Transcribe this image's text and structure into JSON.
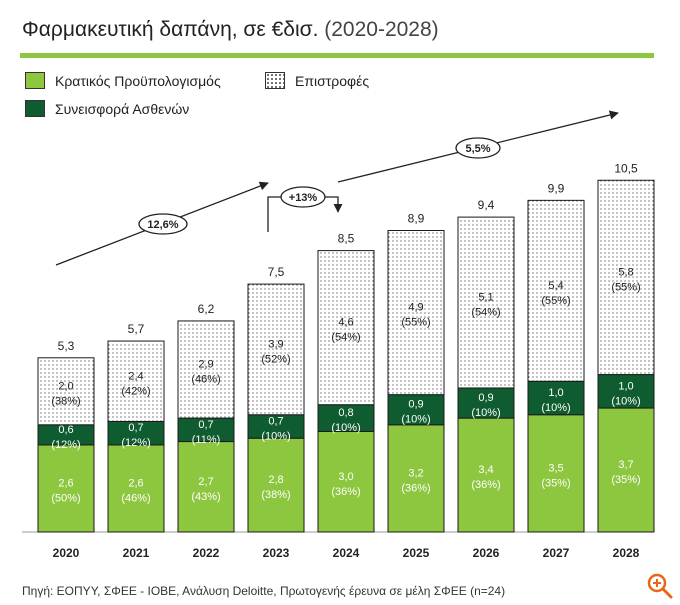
{
  "title": {
    "main": "Φαρμακευτική δαπάνη, σε €δισ.",
    "sub": "(2020-2028)"
  },
  "legend": [
    {
      "label": "Κρατικός Προϋπολογισμός",
      "swatch": "green"
    },
    {
      "label": "Επιστροφές",
      "swatch": "dots"
    },
    {
      "label": "Συνεισφορά Ασθενών",
      "swatch": "dark"
    }
  ],
  "colors": {
    "budget": "#8dc63f",
    "patients": "#0e5c2f",
    "rebates_fill": "#ffffff",
    "dots": "#444444",
    "accent_rule": "#8dc63f"
  },
  "chart_data": {
    "type": "bar",
    "stacked": true,
    "categories": [
      "2020",
      "2021",
      "2022",
      "2023",
      "2024",
      "2025",
      "2026",
      "2027",
      "2028"
    ],
    "series": [
      {
        "name": "Κρατικός Προϋπολογισμός",
        "values": [
          2.6,
          2.6,
          2.7,
          2.8,
          3.0,
          3.2,
          3.4,
          3.5,
          3.7
        ],
        "labels": [
          "2,6",
          "2,6",
          "2,7",
          "2,8",
          "3,0",
          "3,2",
          "3,4",
          "3,5",
          "3,7"
        ],
        "shares": [
          "(50%)",
          "(46%)",
          "(43%)",
          "(38%)",
          "(36%)",
          "(36%)",
          "(36%)",
          "(35%)",
          "(35%)"
        ]
      },
      {
        "name": "Συνεισφορά Ασθενών",
        "values": [
          0.6,
          0.7,
          0.7,
          0.7,
          0.8,
          0.9,
          0.9,
          1.0,
          1.0
        ],
        "labels": [
          "0,6",
          "0,7",
          "0,7",
          "0,7",
          "0,8",
          "0,9",
          "0,9",
          "1,0",
          "1,0"
        ],
        "shares": [
          "(12%)",
          "(12%)",
          "(11%)",
          "(10%)",
          "(10%)",
          "(10%)",
          "(10%)",
          "(10%)",
          "(10%)"
        ]
      },
      {
        "name": "Επιστροφές",
        "values": [
          2.0,
          2.4,
          2.9,
          3.9,
          4.6,
          4.9,
          5.1,
          5.4,
          5.8
        ],
        "labels": [
          "2,0",
          "2,4",
          "2,9",
          "3,9",
          "4,6",
          "4,9",
          "5,1",
          "5,4",
          "5,8"
        ],
        "shares": [
          "(38%)",
          "(42%)",
          "(46%)",
          "(52%)",
          "(54%)",
          "(55%)",
          "(54%)",
          "(55%)",
          "(55%)"
        ]
      }
    ],
    "totals": [
      5.3,
      5.7,
      6.2,
      7.5,
      8.5,
      8.9,
      9.4,
      9.9,
      10.5
    ],
    "total_labels": [
      "5,3",
      "5,7",
      "6,2",
      "7,5",
      "8,5",
      "8,9",
      "9,4",
      "9,9",
      "10,5"
    ],
    "annotations": [
      {
        "text": "12,6%",
        "kind": "growth-arrow",
        "from": "2020",
        "to": "2023"
      },
      {
        "text": "+13%",
        "kind": "step",
        "from": "2023",
        "to": "2024"
      },
      {
        "text": "5,5%",
        "kind": "growth-arrow",
        "from": "2024",
        "to": "2028"
      }
    ]
  },
  "source": "Πηγή: ΕΟΠΥΥ, ΣΦΕΕ - ΙΟΒΕ, Ανάλυση Deloitte, Πρωτογενής έρευνα σε μέλη ΣΦΕΕ (n=24)",
  "icons": {
    "zoom": "zoom-icon"
  }
}
